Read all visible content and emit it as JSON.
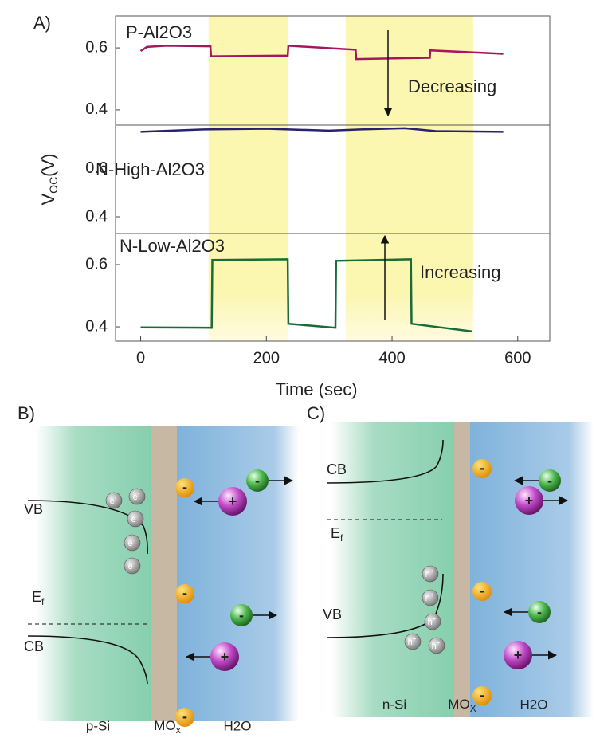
{
  "chart_data": {
    "type": "line",
    "panel_label": "A)",
    "xlabel": "Time (sec)",
    "ylabel": {
      "symbol": "V",
      "subscript": "OC",
      "unit": "(V)"
    },
    "xlim": [
      -40,
      651
    ],
    "xticks": [
      0,
      200,
      400,
      600
    ],
    "highlight_ranges": [
      [
        108,
        235
      ],
      [
        326,
        529
      ]
    ],
    "highlight_color": "#fbf6b0",
    "annotations": [
      {
        "text": "Decreasing"
      },
      {
        "text": "Increasing"
      }
    ],
    "panels": [
      {
        "ylim": [
          0.351,
          0.703
        ],
        "yticks": [
          0.4,
          0.6
        ],
        "x": [
          0,
          10,
          40,
          111,
          112,
          234,
          235,
          342,
          343,
          460,
          461,
          577
        ],
        "series": [
          {
            "name": "P-Al2O3",
            "color": "#a3175f",
            "values": [
              0.59,
              0.603,
              0.607,
              0.605,
              0.573,
              0.575,
              0.607,
              0.594,
              0.564,
              0.568,
              0.592,
              0.581
            ]
          }
        ]
      },
      {
        "ylim": [
          0.33,
          0.783
        ],
        "yticks": [
          0.4,
          0.6
        ],
        "x": [
          0,
          100,
          200,
          300,
          350,
          420,
          470,
          577
        ],
        "series": [
          {
            "name": "N-High-Al2O3",
            "color": "#2a2070",
            "values": [
              0.755,
              0.765,
              0.768,
              0.76,
              0.765,
              0.77,
              0.758,
              0.755
            ]
          }
        ]
      },
      {
        "ylim": [
          0.354,
          0.7
        ],
        "yticks": [
          0.4,
          0.6
        ],
        "x": [
          0,
          113,
          114,
          234,
          235,
          310,
          311,
          430,
          431,
          528
        ],
        "series": [
          {
            "name": "N-Low-Al2O3",
            "color": "#1a6b3a",
            "values": [
              0.398,
              0.397,
              0.615,
              0.617,
              0.41,
              0.397,
              0.612,
              0.617,
              0.41,
              0.385
            ]
          }
        ]
      }
    ]
  },
  "diagrams": [
    {
      "label": "B)",
      "material": "p-Si",
      "oxide": "MO",
      "oxide_subscript": "x",
      "medium": "H2O",
      "upper_band": "VB",
      "lower_band": "CB",
      "fermi": "E",
      "fermi_subscript": "f",
      "carrier": "e",
      "carrier_sign": "-",
      "anion_sign": "-",
      "cation_sign": "+"
    },
    {
      "label": "C)",
      "material": "n-Si",
      "oxide": "MO",
      "oxide_subscript": "X",
      "medium": "H2O",
      "upper_band": "CB",
      "lower_band": "VB",
      "fermi": "E",
      "fermi_subscript": "f",
      "carrier": "h",
      "carrier_sign": "+",
      "anion_sign": "-",
      "cation_sign": "+"
    }
  ]
}
